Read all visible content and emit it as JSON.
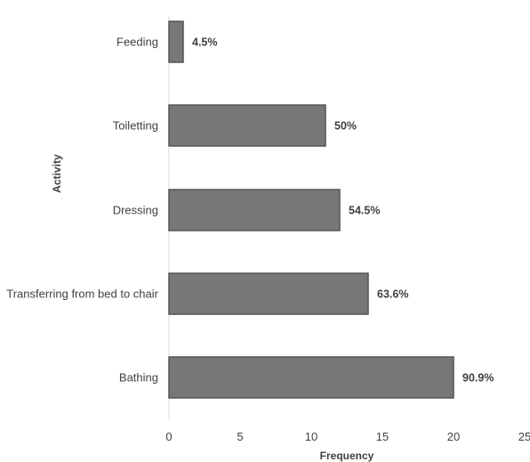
{
  "chart_data": {
    "type": "bar",
    "orientation": "horizontal",
    "categories": [
      "Feeding",
      "Toiletting",
      "Dressing",
      "Transferring from bed to chair",
      "Bathing"
    ],
    "values": [
      1,
      11,
      12,
      14,
      20
    ],
    "data_labels": [
      "4.5%",
      "50%",
      "54.5%",
      "63.6%",
      "90.9%"
    ],
    "title": "",
    "xlabel": "Frequency",
    "ylabel": "Activity",
    "xlim": [
      0,
      25
    ],
    "x_ticks": [
      "0",
      "5",
      "10",
      "15",
      "20",
      "25"
    ],
    "grid": false,
    "bar_color": "#777777",
    "bar_edge_color": "#555555"
  }
}
